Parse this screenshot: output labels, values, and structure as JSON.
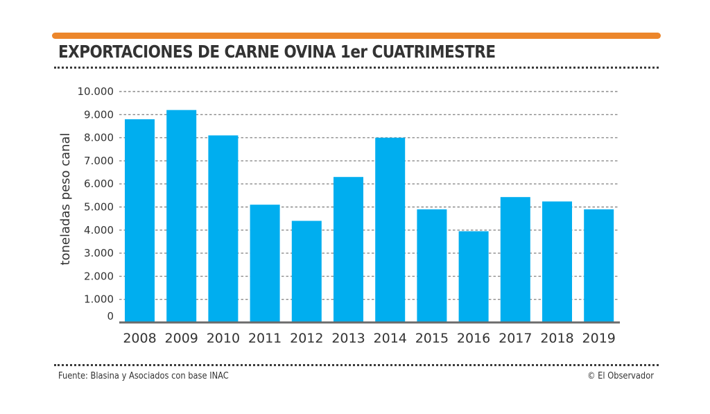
{
  "header": {
    "title": "EXPORTACIONES DE CARNE OVINA 1er CUATRIMESTRE",
    "accent_color": "#ec862b"
  },
  "footer": {
    "source": "Fuente: Blasina y Asociados con base INAC",
    "credit": "© El Observador"
  },
  "chart_data": {
    "type": "bar",
    "title": "EXPORTACIONES DE CARNE OVINA 1er CUATRIMESTRE",
    "xlabel": "",
    "ylabel": "toneladas peso canal",
    "categories": [
      "2008",
      "2009",
      "2010",
      "2011",
      "2012",
      "2013",
      "2014",
      "2015",
      "2016",
      "2017",
      "2018",
      "2019"
    ],
    "values": [
      8800,
      9200,
      8100,
      5100,
      4400,
      6300,
      8000,
      4900,
      3950,
      5430,
      5240,
      4900
    ],
    "ylim": [
      0,
      10000
    ],
    "yticks": [
      0,
      1000,
      2000,
      3000,
      4000,
      5000,
      6000,
      7000,
      8000,
      9000,
      10000
    ],
    "ytick_labels": [
      "0",
      "1.000",
      "2.000",
      "3.000",
      "4.000",
      "5.000",
      "6.000",
      "7.000",
      "8.000",
      "9.000",
      "10.000"
    ],
    "grid": true,
    "legend": "none",
    "bar_color": "#00aeef",
    "grid_color": "#8a8a8a",
    "axis_color": "#6b6b6b"
  }
}
